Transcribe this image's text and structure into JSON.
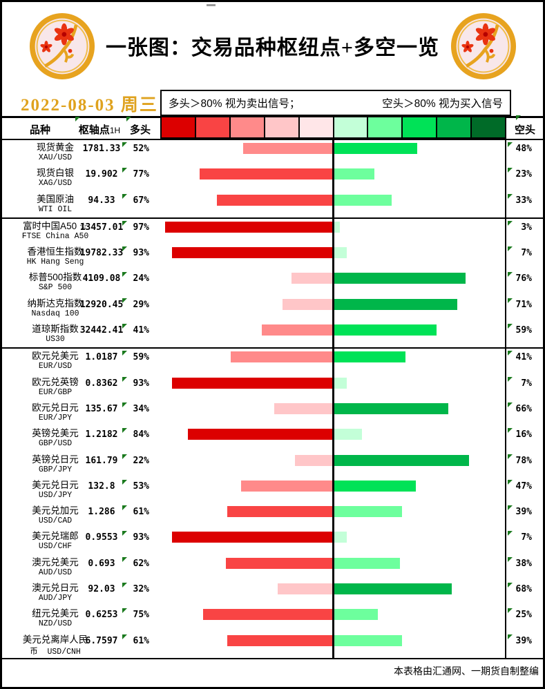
{
  "header": {
    "title": "一张图：交易品种枢纽点+多空一览",
    "date": "2022-08-03 周三",
    "note_long": "多头＞80% 视为卖出信号；",
    "note_short": "空头＞80% 视为买入信号",
    "col_instrument": "品种",
    "col_pivot": "枢轴点",
    "col_pivot_suffix": "1H",
    "col_long": "多头",
    "col_short": "空头"
  },
  "footer": {
    "credit": "本表格由汇通网、一期货自制整编"
  },
  "palette": {
    "long_red": [
      "#DC0000",
      "#F94444",
      "#FF8A8A",
      "#FFC6C8",
      "#FFE6E8"
    ],
    "short_green": [
      "#C3FFD8",
      "#6DFF9D",
      "#00E257",
      "#00B64A",
      "#006B28"
    ],
    "marker_green": "#1B7A1E",
    "date_gold": "#DFA21E"
  },
  "chart_data": {
    "type": "bar",
    "orientation": "horizontal-diverging",
    "title": "交易品种枢纽点+多空一览",
    "value_unit": "%",
    "value_max_each_side": 100,
    "color_buckets_pct": [
      0,
      20,
      40,
      60,
      80
    ],
    "series": [
      {
        "name": "多头"
      },
      {
        "name": "空头"
      }
    ],
    "group_sizes": [
      3,
      5,
      12
    ],
    "rows": [
      {
        "name": "现货黄金",
        "code": "XAU/USD",
        "pivot": "1781.33",
        "long_pct": 52,
        "short_pct": 48
      },
      {
        "name": "现货白银",
        "code": "XAG/USD",
        "pivot": "19.902",
        "long_pct": 77,
        "short_pct": 23
      },
      {
        "name": "美国原油",
        "code": "WTI OIL",
        "pivot": "94.33",
        "long_pct": 67,
        "short_pct": 33
      },
      {
        "name": "富时中国A50 ☆",
        "code": "FTSE China A50",
        "pivot": "13457.01",
        "long_pct": 97,
        "short_pct": 3
      },
      {
        "name": "香港恒生指数",
        "code": "HK Hang Seng",
        "pivot": "19782.33",
        "long_pct": 93,
        "short_pct": 7
      },
      {
        "name": "标普500指数",
        "code": "S&P 500",
        "pivot": "4109.08",
        "long_pct": 24,
        "short_pct": 76
      },
      {
        "name": "纳斯达克指数",
        "code": "Nasdaq 100",
        "pivot": "12920.45",
        "long_pct": 29,
        "short_pct": 71
      },
      {
        "name": "道琼斯指数",
        "code": "US30",
        "pivot": "32442.41",
        "long_pct": 41,
        "short_pct": 59
      },
      {
        "name": "欧元兑美元",
        "code": "EUR/USD",
        "pivot": "1.0187",
        "long_pct": 59,
        "short_pct": 41
      },
      {
        "name": "欧元兑英镑",
        "code": "EUR/GBP",
        "pivot": "0.8362",
        "long_pct": 93,
        "short_pct": 7
      },
      {
        "name": "欧元兑日元",
        "code": "EUR/JPY",
        "pivot": "135.67",
        "long_pct": 34,
        "short_pct": 66
      },
      {
        "name": "英镑兑美元",
        "code": "GBP/USD",
        "pivot": "1.2182",
        "long_pct": 84,
        "short_pct": 16
      },
      {
        "name": "英镑兑日元",
        "code": "GBP/JPY",
        "pivot": "161.79",
        "long_pct": 22,
        "short_pct": 78
      },
      {
        "name": "美元兑日元",
        "code": "USD/JPY",
        "pivot": "132.8",
        "long_pct": 53,
        "short_pct": 47
      },
      {
        "name": "美元兑加元",
        "code": "USD/CAD",
        "pivot": "1.286",
        "long_pct": 61,
        "short_pct": 39
      },
      {
        "name": "美元兑瑞郎",
        "code": "USD/CHF",
        "pivot": "0.9553",
        "long_pct": 93,
        "short_pct": 7
      },
      {
        "name": "澳元兑美元",
        "code": "AUD/USD",
        "pivot": "0.693",
        "long_pct": 62,
        "short_pct": 38
      },
      {
        "name": "澳元兑日元",
        "code": "AUD/JPY",
        "pivot": "92.03",
        "long_pct": 32,
        "short_pct": 68
      },
      {
        "name": "纽元兑美元",
        "code": "NZD/USD",
        "pivot": "0.6253",
        "long_pct": 75,
        "short_pct": 25
      },
      {
        "name": "美元兑离岸人民",
        "code": "币  USD/CNH",
        "pivot": "6.7597",
        "long_pct": 61,
        "short_pct": 39
      }
    ]
  }
}
